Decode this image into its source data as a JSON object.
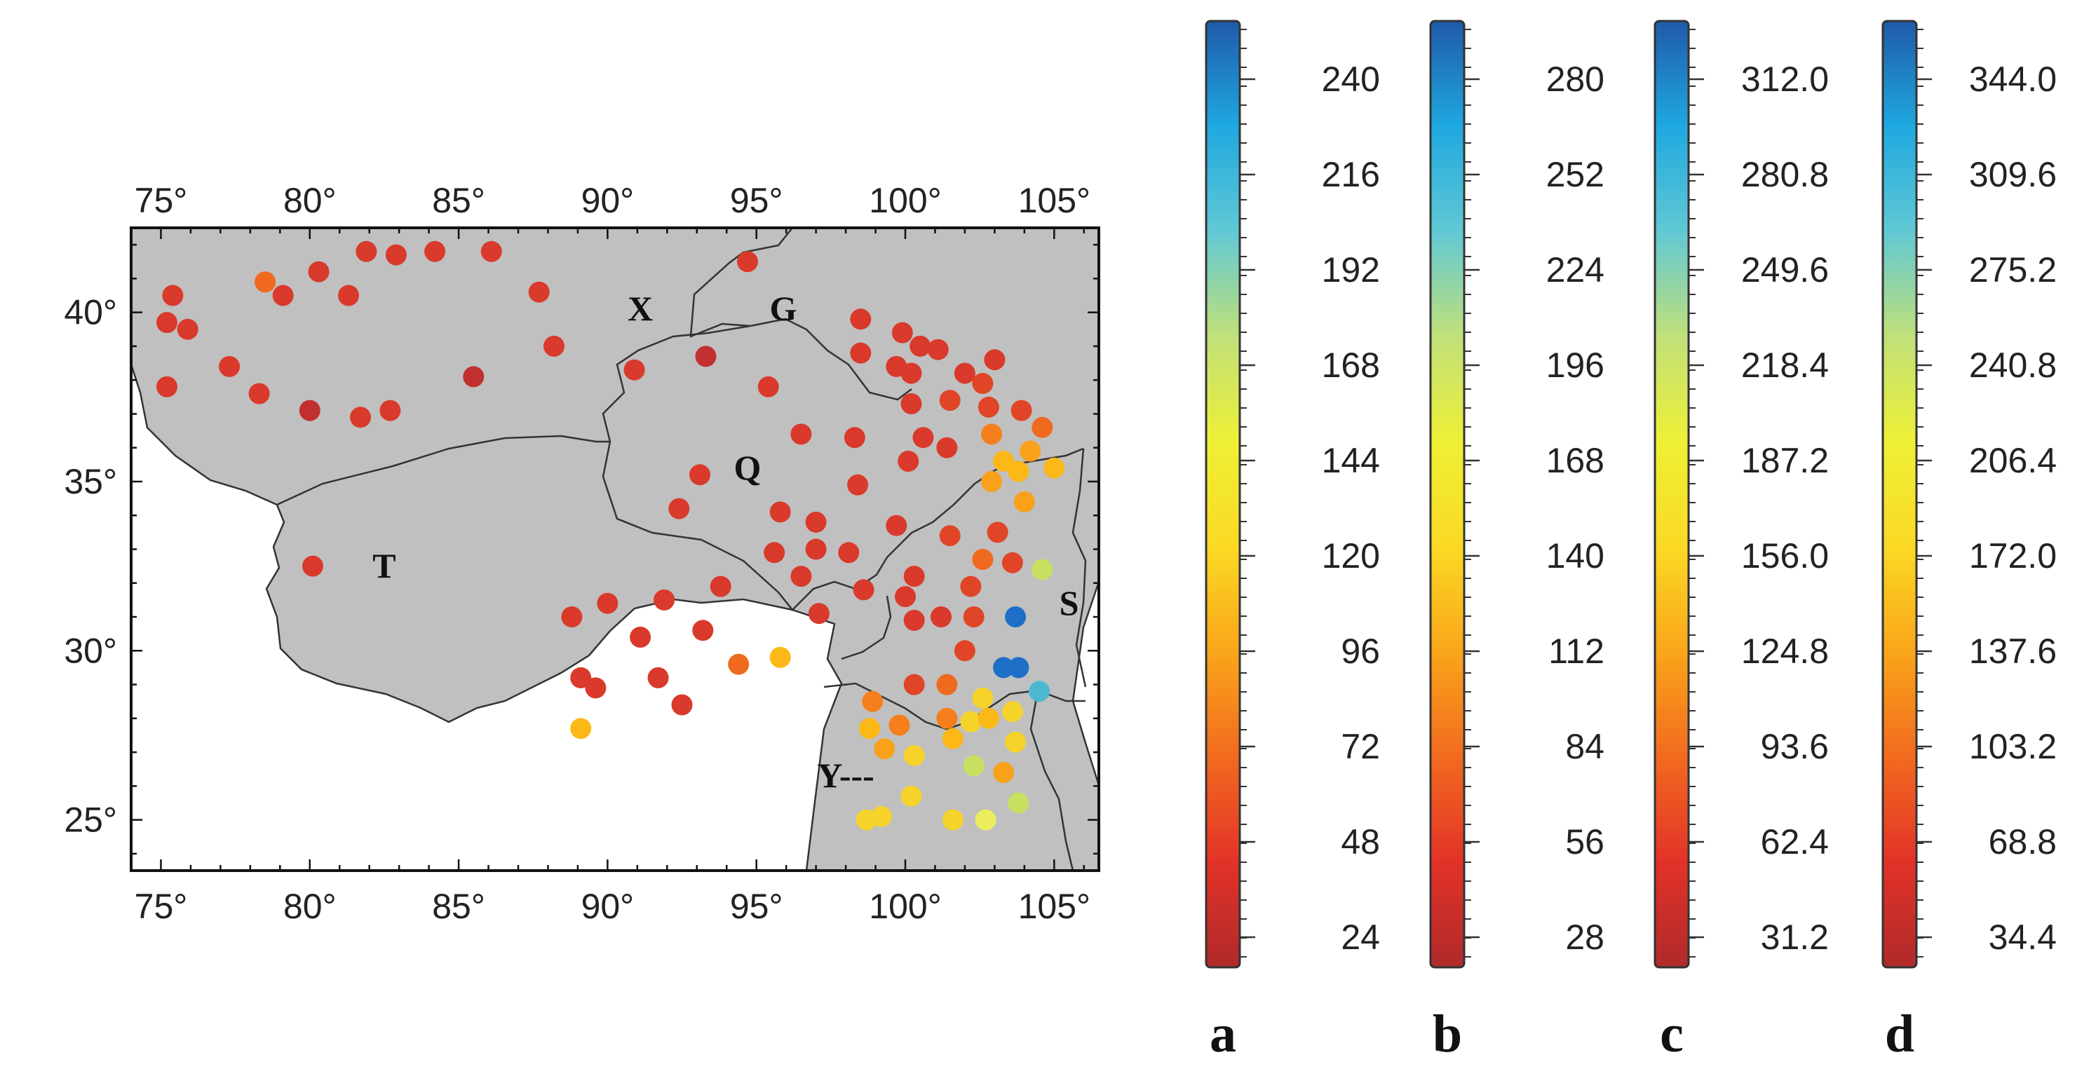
{
  "map": {
    "lon_range": [
      74,
      106.5
    ],
    "lat_range": [
      23.5,
      42.5
    ],
    "x_ticks": [
      {
        "value": 75,
        "label": "75°"
      },
      {
        "value": 80,
        "label": "80°"
      },
      {
        "value": 85,
        "label": "85°"
      },
      {
        "value": 90,
        "label": "90°"
      },
      {
        "value": 95,
        "label": "95°"
      },
      {
        "value": 100,
        "label": "100°"
      },
      {
        "value": 105,
        "label": "105°"
      }
    ],
    "y_ticks": [
      {
        "value": 40,
        "label": "40°"
      },
      {
        "value": 35,
        "label": "35°"
      },
      {
        "value": 30,
        "label": "30°"
      },
      {
        "value": 25,
        "label": "25°"
      }
    ],
    "land_color": "#c0c0c0",
    "boundary_color": "#333333",
    "regions": [
      {
        "id": "X",
        "label": "X",
        "lon": 91.1,
        "lat": 40.0
      },
      {
        "id": "G",
        "label": "G",
        "lon": 95.9,
        "lat": 40.0
      },
      {
        "id": "Q",
        "label": "Q",
        "lon": 94.7,
        "lat": 35.3
      },
      {
        "id": "T",
        "label": "T",
        "lon": 82.5,
        "lat": 32.4
      },
      {
        "id": "S",
        "label": "S",
        "lon": 105.5,
        "lat": 31.3
      },
      {
        "id": "Y",
        "label": "Y---",
        "lon": 98.0,
        "lat": 26.2
      }
    ],
    "stations": [
      {
        "lon": 75.4,
        "lat": 40.5,
        "color": "#d93a2b"
      },
      {
        "lon": 75.2,
        "lat": 39.7,
        "color": "#d93a2b"
      },
      {
        "lon": 75.9,
        "lat": 39.5,
        "color": "#d93a2b"
      },
      {
        "lon": 75.2,
        "lat": 37.8,
        "color": "#d93a2b"
      },
      {
        "lon": 77.3,
        "lat": 38.4,
        "color": "#d93a2b"
      },
      {
        "lon": 78.3,
        "lat": 37.6,
        "color": "#d93a2b"
      },
      {
        "lon": 78.5,
        "lat": 40.9,
        "color": "#ef6a1e"
      },
      {
        "lon": 79.1,
        "lat": 40.5,
        "color": "#d93a2b"
      },
      {
        "lon": 80.0,
        "lat": 37.1,
        "color": "#c13030"
      },
      {
        "lon": 80.3,
        "lat": 41.2,
        "color": "#d93a2b"
      },
      {
        "lon": 81.3,
        "lat": 40.5,
        "color": "#d93a2b"
      },
      {
        "lon": 81.7,
        "lat": 36.9,
        "color": "#d93a2b"
      },
      {
        "lon": 81.9,
        "lat": 41.8,
        "color": "#d93a2b"
      },
      {
        "lon": 82.9,
        "lat": 41.7,
        "color": "#d93a2b"
      },
      {
        "lon": 82.7,
        "lat": 37.1,
        "color": "#d93a2b"
      },
      {
        "lon": 84.2,
        "lat": 41.8,
        "color": "#d93a2b"
      },
      {
        "lon": 86.1,
        "lat": 41.8,
        "color": "#d93a2b"
      },
      {
        "lon": 85.5,
        "lat": 38.1,
        "color": "#c13030"
      },
      {
        "lon": 87.7,
        "lat": 40.6,
        "color": "#d93a2b"
      },
      {
        "lon": 88.2,
        "lat": 39.0,
        "color": "#d93a2b"
      },
      {
        "lon": 90.9,
        "lat": 38.3,
        "color": "#d93a2b"
      },
      {
        "lon": 93.3,
        "lat": 38.7,
        "color": "#c13030"
      },
      {
        "lon": 94.7,
        "lat": 41.5,
        "color": "#d93a2b"
      },
      {
        "lon": 95.4,
        "lat": 37.8,
        "color": "#d93a2b"
      },
      {
        "lon": 98.5,
        "lat": 39.8,
        "color": "#d93a2b"
      },
      {
        "lon": 98.5,
        "lat": 38.8,
        "color": "#d93a2b"
      },
      {
        "lon": 99.9,
        "lat": 39.4,
        "color": "#d93a2b"
      },
      {
        "lon": 100.5,
        "lat": 39.0,
        "color": "#d93a2b"
      },
      {
        "lon": 101.1,
        "lat": 38.9,
        "color": "#d93a2b"
      },
      {
        "lon": 99.7,
        "lat": 38.4,
        "color": "#d93a2b"
      },
      {
        "lon": 100.2,
        "lat": 38.2,
        "color": "#d93a2b"
      },
      {
        "lon": 102.0,
        "lat": 38.2,
        "color": "#d93a2b"
      },
      {
        "lon": 103.0,
        "lat": 38.6,
        "color": "#d93a2b"
      },
      {
        "lon": 102.6,
        "lat": 37.9,
        "color": "#e04527"
      },
      {
        "lon": 101.5,
        "lat": 37.4,
        "color": "#e04527"
      },
      {
        "lon": 100.2,
        "lat": 37.3,
        "color": "#d93a2b"
      },
      {
        "lon": 102.8,
        "lat": 37.2,
        "color": "#e04527"
      },
      {
        "lon": 103.9,
        "lat": 37.1,
        "color": "#e04527"
      },
      {
        "lon": 104.6,
        "lat": 36.6,
        "color": "#ef6a1e"
      },
      {
        "lon": 100.6,
        "lat": 36.3,
        "color": "#d93a2b"
      },
      {
        "lon": 101.4,
        "lat": 36.0,
        "color": "#d93a2b"
      },
      {
        "lon": 98.3,
        "lat": 36.3,
        "color": "#d93a2b"
      },
      {
        "lon": 96.5,
        "lat": 36.4,
        "color": "#d93a2b"
      },
      {
        "lon": 102.9,
        "lat": 36.4,
        "color": "#f57f1c"
      },
      {
        "lon": 104.2,
        "lat": 35.9,
        "color": "#f9a11a"
      },
      {
        "lon": 103.3,
        "lat": 35.6,
        "color": "#fbb817"
      },
      {
        "lon": 103.8,
        "lat": 35.3,
        "color": "#fbb817"
      },
      {
        "lon": 105.0,
        "lat": 35.4,
        "color": "#fbb817"
      },
      {
        "lon": 100.1,
        "lat": 35.6,
        "color": "#d93a2b"
      },
      {
        "lon": 102.9,
        "lat": 35.0,
        "color": "#f9a11a"
      },
      {
        "lon": 104.0,
        "lat": 34.4,
        "color": "#f9a11a"
      },
      {
        "lon": 93.1,
        "lat": 35.2,
        "color": "#d93a2b"
      },
      {
        "lon": 98.4,
        "lat": 34.9,
        "color": "#d93a2b"
      },
      {
        "lon": 92.4,
        "lat": 34.2,
        "color": "#d93a2b"
      },
      {
        "lon": 95.8,
        "lat": 34.1,
        "color": "#d93a2b"
      },
      {
        "lon": 97.0,
        "lat": 33.8,
        "color": "#d93a2b"
      },
      {
        "lon": 99.7,
        "lat": 33.7,
        "color": "#d93a2b"
      },
      {
        "lon": 101.5,
        "lat": 33.4,
        "color": "#e04527"
      },
      {
        "lon": 103.1,
        "lat": 33.5,
        "color": "#e04527"
      },
      {
        "lon": 95.6,
        "lat": 32.9,
        "color": "#d93a2b"
      },
      {
        "lon": 97.0,
        "lat": 33.0,
        "color": "#d93a2b"
      },
      {
        "lon": 98.1,
        "lat": 32.9,
        "color": "#d93a2b"
      },
      {
        "lon": 102.6,
        "lat": 32.7,
        "color": "#ef6a1e"
      },
      {
        "lon": 103.6,
        "lat": 32.6,
        "color": "#e04527"
      },
      {
        "lon": 104.6,
        "lat": 32.4,
        "color": "#c8e060"
      },
      {
        "lon": 80.1,
        "lat": 32.5,
        "color": "#d93a2b"
      },
      {
        "lon": 96.5,
        "lat": 32.2,
        "color": "#d93a2b"
      },
      {
        "lon": 100.3,
        "lat": 32.2,
        "color": "#d93a2b"
      },
      {
        "lon": 93.8,
        "lat": 31.9,
        "color": "#d93a2b"
      },
      {
        "lon": 98.6,
        "lat": 31.8,
        "color": "#d93a2b"
      },
      {
        "lon": 100.0,
        "lat": 31.6,
        "color": "#d93a2b"
      },
      {
        "lon": 102.2,
        "lat": 31.9,
        "color": "#e04527"
      },
      {
        "lon": 91.9,
        "lat": 31.5,
        "color": "#d93a2b"
      },
      {
        "lon": 90.0,
        "lat": 31.4,
        "color": "#d93a2b"
      },
      {
        "lon": 88.8,
        "lat": 31.0,
        "color": "#d93a2b"
      },
      {
        "lon": 97.1,
        "lat": 31.1,
        "color": "#d93a2b"
      },
      {
        "lon": 100.3,
        "lat": 30.9,
        "color": "#d93a2b"
      },
      {
        "lon": 101.2,
        "lat": 31.0,
        "color": "#d93a2b"
      },
      {
        "lon": 102.3,
        "lat": 31.0,
        "color": "#e04527"
      },
      {
        "lon": 103.7,
        "lat": 31.0,
        "color": "#1e6fc8"
      },
      {
        "lon": 93.2,
        "lat": 30.6,
        "color": "#d93a2b"
      },
      {
        "lon": 91.1,
        "lat": 30.4,
        "color": "#d93a2b"
      },
      {
        "lon": 102.0,
        "lat": 30.0,
        "color": "#e04527"
      },
      {
        "lon": 95.8,
        "lat": 29.8,
        "color": "#fbb817"
      },
      {
        "lon": 94.4,
        "lat": 29.6,
        "color": "#ef6a1e"
      },
      {
        "lon": 103.3,
        "lat": 29.5,
        "color": "#1e6fc8"
      },
      {
        "lon": 103.8,
        "lat": 29.5,
        "color": "#1e6fc8"
      },
      {
        "lon": 89.1,
        "lat": 29.2,
        "color": "#d93a2b"
      },
      {
        "lon": 91.7,
        "lat": 29.2,
        "color": "#d93a2b"
      },
      {
        "lon": 89.6,
        "lat": 28.9,
        "color": "#d93a2b"
      },
      {
        "lon": 100.3,
        "lat": 29.0,
        "color": "#e04527"
      },
      {
        "lon": 101.4,
        "lat": 29.0,
        "color": "#ef6a1e"
      },
      {
        "lon": 104.5,
        "lat": 28.8,
        "color": "#4cb8d0"
      },
      {
        "lon": 92.5,
        "lat": 28.4,
        "color": "#d93a2b"
      },
      {
        "lon": 98.9,
        "lat": 28.5,
        "color": "#f57f1c"
      },
      {
        "lon": 102.6,
        "lat": 28.6,
        "color": "#f5d32a"
      },
      {
        "lon": 101.4,
        "lat": 28.0,
        "color": "#f57f1c"
      },
      {
        "lon": 102.2,
        "lat": 27.9,
        "color": "#f5d32a"
      },
      {
        "lon": 102.8,
        "lat": 28.0,
        "color": "#fbb817"
      },
      {
        "lon": 103.6,
        "lat": 28.2,
        "color": "#f5d32a"
      },
      {
        "lon": 99.8,
        "lat": 27.8,
        "color": "#f57f1c"
      },
      {
        "lon": 98.8,
        "lat": 27.7,
        "color": "#fbb817"
      },
      {
        "lon": 89.1,
        "lat": 27.7,
        "color": "#fbb817"
      },
      {
        "lon": 101.6,
        "lat": 27.4,
        "color": "#fbb817"
      },
      {
        "lon": 103.7,
        "lat": 27.3,
        "color": "#f5d32a"
      },
      {
        "lon": 99.3,
        "lat": 27.1,
        "color": "#f9a11a"
      },
      {
        "lon": 100.3,
        "lat": 26.9,
        "color": "#f5d32a"
      },
      {
        "lon": 102.3,
        "lat": 26.6,
        "color": "#c8e060"
      },
      {
        "lon": 103.3,
        "lat": 26.4,
        "color": "#f9a11a"
      },
      {
        "lon": 100.2,
        "lat": 25.7,
        "color": "#f5d32a"
      },
      {
        "lon": 103.8,
        "lat": 25.5,
        "color": "#c8e060"
      },
      {
        "lon": 98.7,
        "lat": 25.0,
        "color": "#f5d32a"
      },
      {
        "lon": 99.2,
        "lat": 25.1,
        "color": "#f5d32a"
      },
      {
        "lon": 101.6,
        "lat": 25.0,
        "color": "#f5d32a"
      },
      {
        "lon": 102.7,
        "lat": 25.0,
        "color": "#ecec60"
      }
    ]
  },
  "colorbar_gradient": [
    "#b02a2a",
    "#e23228",
    "#f26a1f",
    "#f9a51a",
    "#fbd924",
    "#eef036",
    "#c0e07a",
    "#60c8d4",
    "#1fa8e0",
    "#1f5aa8"
  ],
  "colorbars": [
    {
      "letter": "a",
      "labels": [
        "24",
        "48",
        "72",
        "96",
        "120",
        "144",
        "168",
        "192",
        "216",
        "240"
      ]
    },
    {
      "letter": "b",
      "labels": [
        "28",
        "56",
        "84",
        "112",
        "140",
        "168",
        "196",
        "224",
        "252",
        "280"
      ]
    },
    {
      "letter": "c",
      "labels": [
        "31.2",
        "62.4",
        "93.6",
        "124.8",
        "156.0",
        "187.2",
        "218.4",
        "249.6",
        "280.8",
        "312.0"
      ]
    },
    {
      "letter": "d",
      "labels": [
        "34.4",
        "68.8",
        "103.2",
        "137.6",
        "172.0",
        "206.4",
        "240.8",
        "275.2",
        "309.6",
        "344.0"
      ]
    }
  ]
}
